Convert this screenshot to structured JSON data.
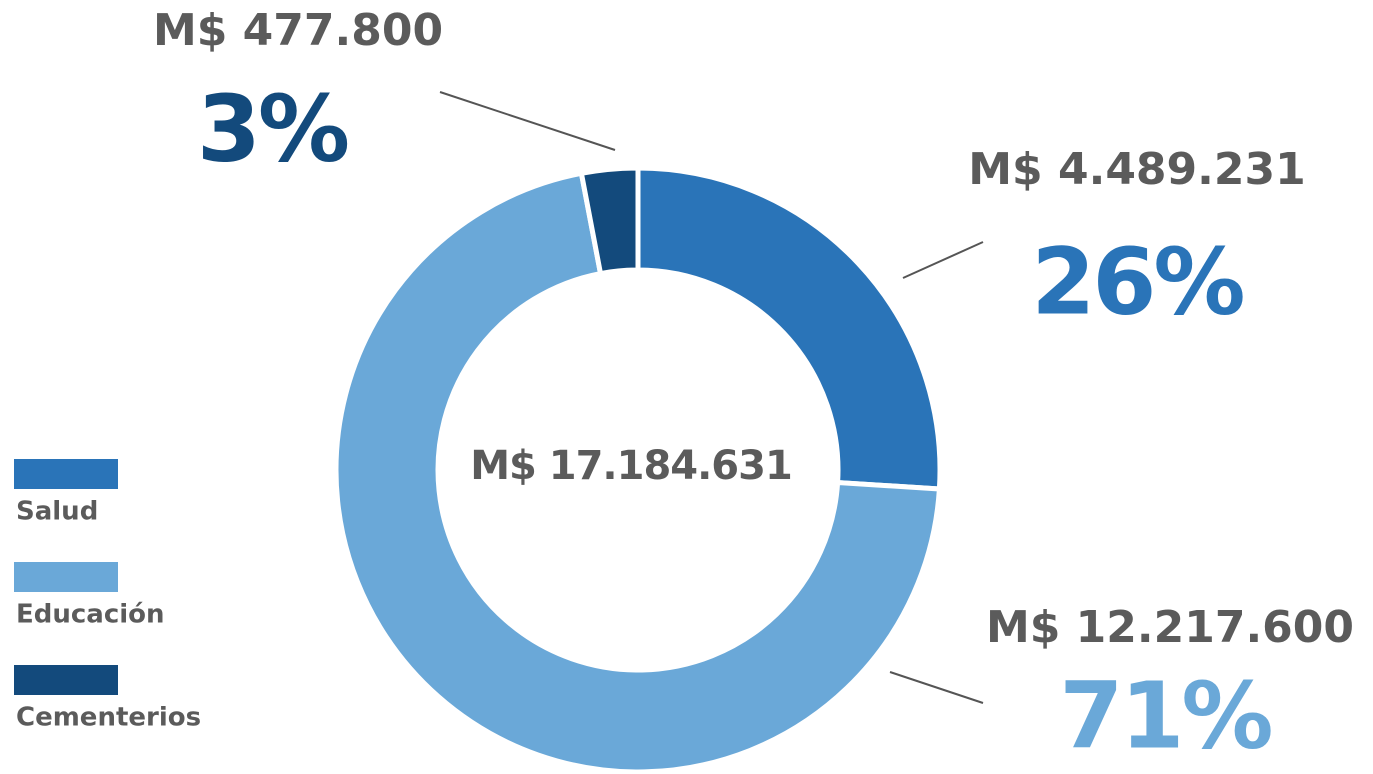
{
  "chart_data": {
    "type": "pie",
    "donut": true,
    "categories": [
      "Salud",
      "Educación",
      "Cementerios"
    ],
    "values": [
      26,
      71,
      3
    ],
    "value_labels": [
      "26%",
      "71%",
      "3%"
    ],
    "amount_labels": [
      "M$ 4.489.231",
      "M$ 12.217.600",
      "M$ 477.800"
    ],
    "colors": [
      "#2a74b8",
      "#6aa8d8",
      "#134a7c"
    ],
    "center_label": "M$ 17.184.631",
    "legend": "left"
  }
}
